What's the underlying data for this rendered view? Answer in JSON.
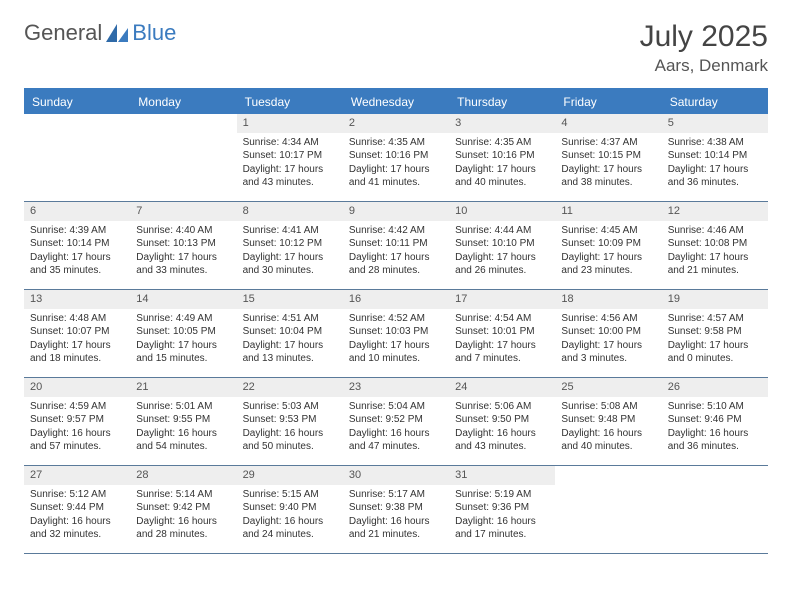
{
  "logo": {
    "part1": "General",
    "part2": "Blue"
  },
  "title": {
    "month_year": "July 2025",
    "location": "Aars, Denmark"
  },
  "colors": {
    "header_bg": "#3b7bbf",
    "daynum_bg": "#eeeeee",
    "rule": "#5a7a9a",
    "text": "#333333",
    "logo_blue": "#3b7bbf",
    "logo_gray": "#555555"
  },
  "weekdays": [
    "Sunday",
    "Monday",
    "Tuesday",
    "Wednesday",
    "Thursday",
    "Friday",
    "Saturday"
  ],
  "cells": [
    {
      "blank": true
    },
    {
      "blank": true
    },
    {
      "n": "1",
      "sr": "4:34 AM",
      "ss": "10:17 PM",
      "dl": "17 hours and 43 minutes."
    },
    {
      "n": "2",
      "sr": "4:35 AM",
      "ss": "10:16 PM",
      "dl": "17 hours and 41 minutes."
    },
    {
      "n": "3",
      "sr": "4:35 AM",
      "ss": "10:16 PM",
      "dl": "17 hours and 40 minutes."
    },
    {
      "n": "4",
      "sr": "4:37 AM",
      "ss": "10:15 PM",
      "dl": "17 hours and 38 minutes."
    },
    {
      "n": "5",
      "sr": "4:38 AM",
      "ss": "10:14 PM",
      "dl": "17 hours and 36 minutes."
    },
    {
      "n": "6",
      "sr": "4:39 AM",
      "ss": "10:14 PM",
      "dl": "17 hours and 35 minutes."
    },
    {
      "n": "7",
      "sr": "4:40 AM",
      "ss": "10:13 PM",
      "dl": "17 hours and 33 minutes."
    },
    {
      "n": "8",
      "sr": "4:41 AM",
      "ss": "10:12 PM",
      "dl": "17 hours and 30 minutes."
    },
    {
      "n": "9",
      "sr": "4:42 AM",
      "ss": "10:11 PM",
      "dl": "17 hours and 28 minutes."
    },
    {
      "n": "10",
      "sr": "4:44 AM",
      "ss": "10:10 PM",
      "dl": "17 hours and 26 minutes."
    },
    {
      "n": "11",
      "sr": "4:45 AM",
      "ss": "10:09 PM",
      "dl": "17 hours and 23 minutes."
    },
    {
      "n": "12",
      "sr": "4:46 AM",
      "ss": "10:08 PM",
      "dl": "17 hours and 21 minutes."
    },
    {
      "n": "13",
      "sr": "4:48 AM",
      "ss": "10:07 PM",
      "dl": "17 hours and 18 minutes."
    },
    {
      "n": "14",
      "sr": "4:49 AM",
      "ss": "10:05 PM",
      "dl": "17 hours and 15 minutes."
    },
    {
      "n": "15",
      "sr": "4:51 AM",
      "ss": "10:04 PM",
      "dl": "17 hours and 13 minutes."
    },
    {
      "n": "16",
      "sr": "4:52 AM",
      "ss": "10:03 PM",
      "dl": "17 hours and 10 minutes."
    },
    {
      "n": "17",
      "sr": "4:54 AM",
      "ss": "10:01 PM",
      "dl": "17 hours and 7 minutes."
    },
    {
      "n": "18",
      "sr": "4:56 AM",
      "ss": "10:00 PM",
      "dl": "17 hours and 3 minutes."
    },
    {
      "n": "19",
      "sr": "4:57 AM",
      "ss": "9:58 PM",
      "dl": "17 hours and 0 minutes."
    },
    {
      "n": "20",
      "sr": "4:59 AM",
      "ss": "9:57 PM",
      "dl": "16 hours and 57 minutes."
    },
    {
      "n": "21",
      "sr": "5:01 AM",
      "ss": "9:55 PM",
      "dl": "16 hours and 54 minutes."
    },
    {
      "n": "22",
      "sr": "5:03 AM",
      "ss": "9:53 PM",
      "dl": "16 hours and 50 minutes."
    },
    {
      "n": "23",
      "sr": "5:04 AM",
      "ss": "9:52 PM",
      "dl": "16 hours and 47 minutes."
    },
    {
      "n": "24",
      "sr": "5:06 AM",
      "ss": "9:50 PM",
      "dl": "16 hours and 43 minutes."
    },
    {
      "n": "25",
      "sr": "5:08 AM",
      "ss": "9:48 PM",
      "dl": "16 hours and 40 minutes."
    },
    {
      "n": "26",
      "sr": "5:10 AM",
      "ss": "9:46 PM",
      "dl": "16 hours and 36 minutes."
    },
    {
      "n": "27",
      "sr": "5:12 AM",
      "ss": "9:44 PM",
      "dl": "16 hours and 32 minutes."
    },
    {
      "n": "28",
      "sr": "5:14 AM",
      "ss": "9:42 PM",
      "dl": "16 hours and 28 minutes."
    },
    {
      "n": "29",
      "sr": "5:15 AM",
      "ss": "9:40 PM",
      "dl": "16 hours and 24 minutes."
    },
    {
      "n": "30",
      "sr": "5:17 AM",
      "ss": "9:38 PM",
      "dl": "16 hours and 21 minutes."
    },
    {
      "n": "31",
      "sr": "5:19 AM",
      "ss": "9:36 PM",
      "dl": "16 hours and 17 minutes."
    },
    {
      "blank": true
    },
    {
      "blank": true
    }
  ],
  "labels": {
    "sunrise": "Sunrise: ",
    "sunset": "Sunset: ",
    "daylight": "Daylight: "
  }
}
